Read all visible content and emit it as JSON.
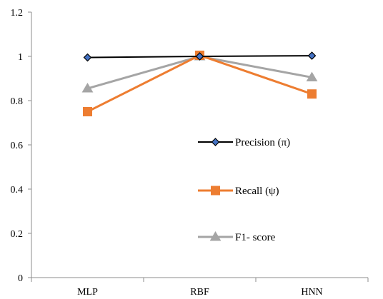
{
  "chart_data": {
    "type": "line",
    "categories": [
      "MLP",
      "RBF",
      "HNN"
    ],
    "series": [
      {
        "name": "Precision (π)",
        "values": [
          0.995,
          1.0,
          1.003
        ],
        "color": "#000000",
        "line_color": "#000000",
        "marker": "diamond",
        "marker_fill": "#4472C4",
        "marker_stroke": "#000000"
      },
      {
        "name": "Recall (ψ)",
        "values": [
          0.75,
          1.005,
          0.83
        ],
        "color": "#ED7D31",
        "line_color": "#ED7D31",
        "marker": "square",
        "marker_fill": "#ED7D31",
        "marker_stroke": "#ED7D31"
      },
      {
        "name": "F1- score",
        "values": [
          0.855,
          1.0,
          0.905
        ],
        "color": "#A5A5A5",
        "line_color": "#A5A5A5",
        "marker": "triangle",
        "marker_fill": "#A5A5A5",
        "marker_stroke": "#A5A5A5"
      }
    ],
    "y_ticks": [
      "0",
      "0.2",
      "0.4",
      "0.6",
      "0.8",
      "1",
      "1.2"
    ],
    "ylim": [
      0,
      1.2
    ],
    "grid": false,
    "legend_placement": "center-right"
  }
}
